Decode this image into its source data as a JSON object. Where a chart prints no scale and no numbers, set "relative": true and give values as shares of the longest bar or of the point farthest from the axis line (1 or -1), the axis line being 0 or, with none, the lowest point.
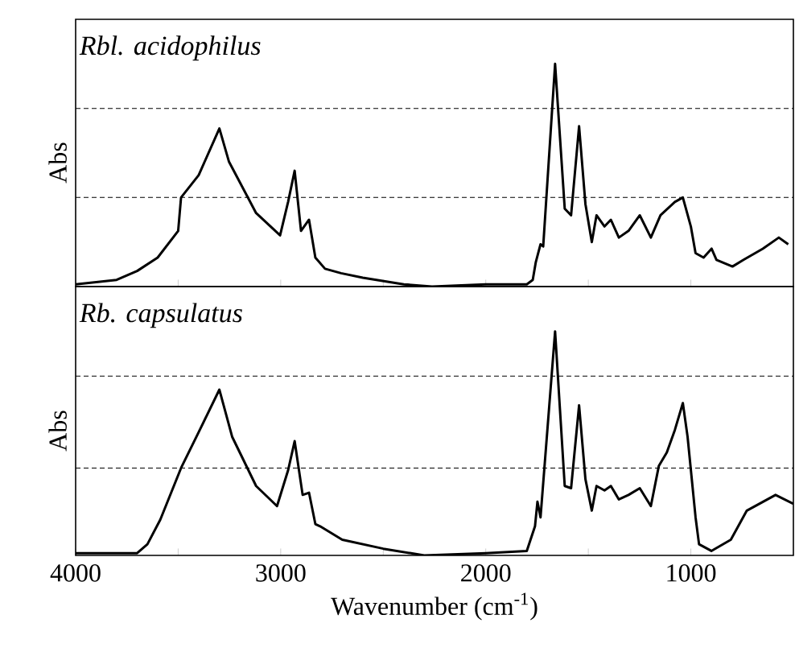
{
  "chart_data": [
    {
      "type": "line",
      "relative": true,
      "xlim": [
        4000,
        500
      ],
      "xticks": [
        4000,
        {
          "value": 3500,
          "label": null
        },
        3000,
        {
          "value": 2500,
          "label": null
        },
        2000,
        {
          "value": 1500,
          "label": null
        },
        1000
      ],
      "tick_labels": false,
      "ylabel": "Abs",
      "annotations": [
        "Rbl. acidophilus"
      ],
      "line_style": "solid",
      "marker": "none",
      "ref_lines": [
        {
          "axis": "y",
          "value": 0.8,
          "line_style": "dashed",
          "color": "#000000"
        },
        {
          "axis": "y",
          "value": 0.4,
          "line_style": "dashed",
          "color": "#000000"
        }
      ],
      "series": [
        {
          "color": "#000000",
          "x": [
            4000,
            3800,
            3700,
            3600,
            3500,
            3486,
            3400,
            3299,
            3252,
            3120,
            3003,
            2964,
            2932,
            2901,
            2862,
            2831,
            2784,
            2706,
            2600,
            2400,
            2262,
            2000,
            1800,
            1771,
            1756,
            1733,
            1720,
            1662,
            1615,
            1584,
            1545,
            1514,
            1483,
            1460,
            1421,
            1390,
            1351,
            1304,
            1249,
            1195,
            1148,
            1078,
            1039,
            1000,
            977,
            938,
            899,
            875,
            797,
            743,
            649,
            571,
            525
          ],
          "values": [
            0.01,
            0.03,
            0.07,
            0.13,
            0.25,
            0.4,
            0.5,
            0.71,
            0.56,
            0.33,
            0.23,
            0.38,
            0.52,
            0.25,
            0.3,
            0.13,
            0.08,
            0.06,
            0.04,
            0.01,
            0.0,
            0.01,
            0.01,
            0.03,
            0.11,
            0.19,
            0.18,
            1.0,
            0.35,
            0.32,
            0.72,
            0.37,
            0.2,
            0.32,
            0.27,
            0.3,
            0.22,
            0.25,
            0.32,
            0.22,
            0.32,
            0.38,
            0.4,
            0.27,
            0.15,
            0.13,
            0.17,
            0.12,
            0.09,
            0.12,
            0.17,
            0.22,
            0.19
          ]
        }
      ]
    },
    {
      "type": "line",
      "relative": true,
      "xlim": [
        4000,
        500
      ],
      "xticks": [
        4000,
        {
          "value": 3500,
          "label": null
        },
        3000,
        {
          "value": 2500,
          "label": null
        },
        2000,
        {
          "value": 1500,
          "label": null
        },
        1000
      ],
      "tick_labels": "x",
      "xlabel": "Wavenumber (cm$^{-1}$)",
      "ylabel": "Abs",
      "annotations": [
        "Rb. capsulatus"
      ],
      "line_style": "solid",
      "marker": "none",
      "ref_lines": [
        {
          "axis": "y",
          "value": 0.8,
          "line_style": "dashed",
          "color": "#000000"
        },
        {
          "axis": "y",
          "value": 0.39,
          "line_style": "dashed",
          "color": "#000000"
        }
      ],
      "series": [
        {
          "color": "#000000",
          "x": [
            4000,
            3800,
            3700,
            3650,
            3587,
            3486,
            3400,
            3299,
            3237,
            3120,
            3018,
            2964,
            2932,
            2893,
            2862,
            2831,
            2808,
            2700,
            2500,
            2300,
            2000,
            1800,
            1760,
            1748,
            1733,
            1662,
            1615,
            1584,
            1545,
            1514,
            1483,
            1460,
            1421,
            1390,
            1351,
            1304,
            1249,
            1195,
            1156,
            1117,
            1078,
            1039,
            1016,
            977,
            960,
            900,
            805,
            727,
            587,
            500
          ],
          "values": [
            0.01,
            0.01,
            0.01,
            0.05,
            0.16,
            0.39,
            0.55,
            0.74,
            0.53,
            0.31,
            0.22,
            0.38,
            0.51,
            0.27,
            0.28,
            0.14,
            0.13,
            0.07,
            0.03,
            0.0,
            0.01,
            0.02,
            0.13,
            0.24,
            0.17,
            1.0,
            0.31,
            0.3,
            0.67,
            0.34,
            0.2,
            0.31,
            0.29,
            0.31,
            0.25,
            0.27,
            0.3,
            0.22,
            0.4,
            0.46,
            0.56,
            0.68,
            0.53,
            0.17,
            0.05,
            0.02,
            0.07,
            0.2,
            0.27,
            0.23
          ]
        }
      ]
    }
  ]
}
